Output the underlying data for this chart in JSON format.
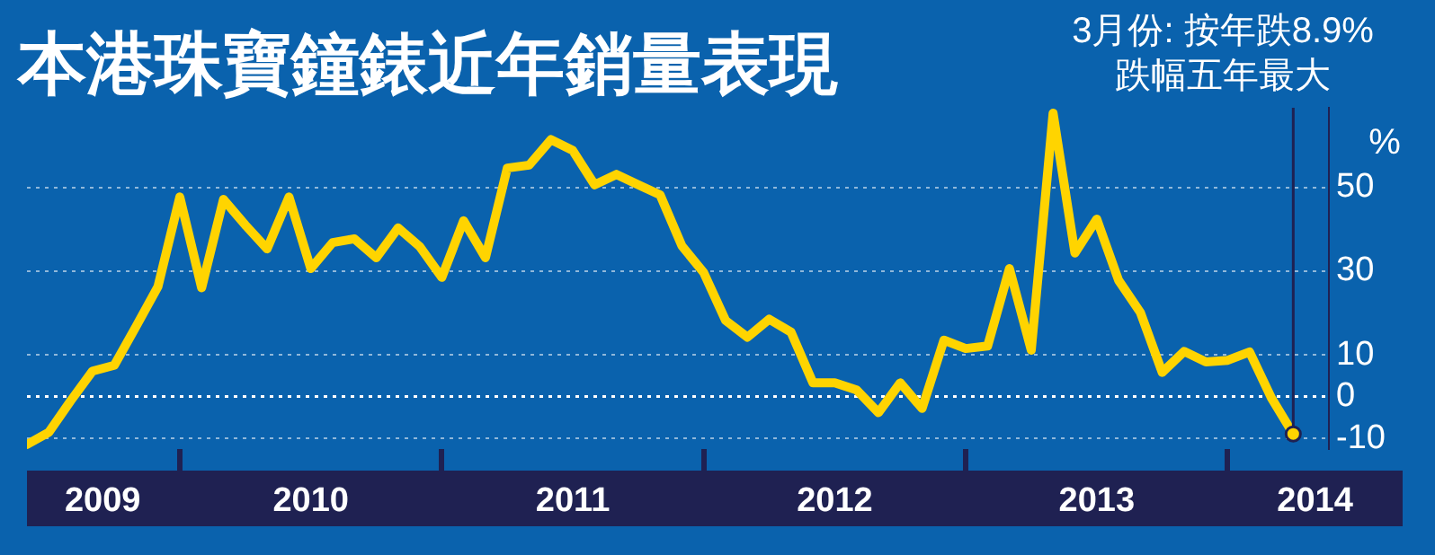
{
  "chart_data": {
    "type": "line",
    "title": "本港珠寶鐘錶近年銷量表現",
    "ylabel": "%",
    "x": [
      "2009-05",
      "2009-06",
      "2009-07",
      "2009-08",
      "2009-09",
      "2009-10",
      "2009-11",
      "2009-12",
      "2010-01",
      "2010-02",
      "2010-03",
      "2010-04",
      "2010-05",
      "2010-06",
      "2010-07",
      "2010-08",
      "2010-09",
      "2010-10",
      "2010-11",
      "2010-12",
      "2011-01",
      "2011-02",
      "2011-03",
      "2011-04",
      "2011-05",
      "2011-06",
      "2011-07",
      "2011-08",
      "2011-09",
      "2011-10",
      "2011-11",
      "2011-12",
      "2012-01",
      "2012-02",
      "2012-03",
      "2012-04",
      "2012-05",
      "2012-06",
      "2012-07",
      "2012-08",
      "2012-09",
      "2012-10",
      "2012-11",
      "2012-12",
      "2013-01",
      "2013-02",
      "2013-03",
      "2013-04",
      "2013-05",
      "2013-06",
      "2013-07",
      "2013-08",
      "2013-09",
      "2013-10",
      "2013-11",
      "2013-12",
      "2014-01",
      "2014-02",
      "2014-03"
    ],
    "series": [
      {
        "color": "#ffd400",
        "values": [
          -11.4,
          -8.5,
          -1,
          6.1,
          7.5,
          16.8,
          26.3,
          47.7,
          26,
          47.1,
          41,
          35.3,
          47.7,
          30.6,
          36.8,
          37.7,
          33.2,
          40.3,
          35.8,
          28.5,
          42,
          33.2,
          54.6,
          55.3,
          61.4,
          58.8,
          50.6,
          53.1,
          50.6,
          48.2,
          36,
          29.6,
          18.2,
          14.2,
          18.5,
          15.4,
          3.3,
          3.3,
          1.6,
          -3.8,
          3.3,
          -2.8,
          13.5,
          11.5,
          12.1,
          30.6,
          11.1,
          67.7,
          34.3,
          42.4,
          27.8,
          20.1,
          5.8,
          10.8,
          8.3,
          8.7,
          10.7,
          -0.3,
          -8.9
        ]
      }
    ],
    "xlim": [
      "2009-05",
      "2014-04-20"
    ],
    "xticks": [
      {
        "value": "2009-08-15",
        "label": "2009"
      },
      {
        "value": "2009-12",
        "label": null
      },
      {
        "value": "2010-06",
        "label": "2010"
      },
      {
        "value": "2010-12",
        "label": null
      },
      {
        "value": "2011-06",
        "label": "2011"
      },
      {
        "value": "2011-12",
        "label": null
      },
      {
        "value": "2012-06",
        "label": "2012"
      },
      {
        "value": "2012-12",
        "label": null
      },
      {
        "value": "2013-06",
        "label": "2013"
      },
      {
        "value": "2013-12",
        "label": null
      },
      {
        "value": "2014-04",
        "label": "2014"
      }
    ],
    "ylim": [
      -12.5,
      69
    ],
    "yticks": [
      -10,
      0,
      10,
      30,
      50
    ],
    "grid": "y",
    "ref_lines": [
      {
        "axis": "y",
        "value": 0,
        "color": "#ffffff"
      }
    ],
    "annotations": [
      "3月份: 按年跌8.9%",
      {
        "text": "跌幅五年最大",
        "x": "2014-03",
        "y": -8.9
      }
    ],
    "line_style": "solid"
  }
}
